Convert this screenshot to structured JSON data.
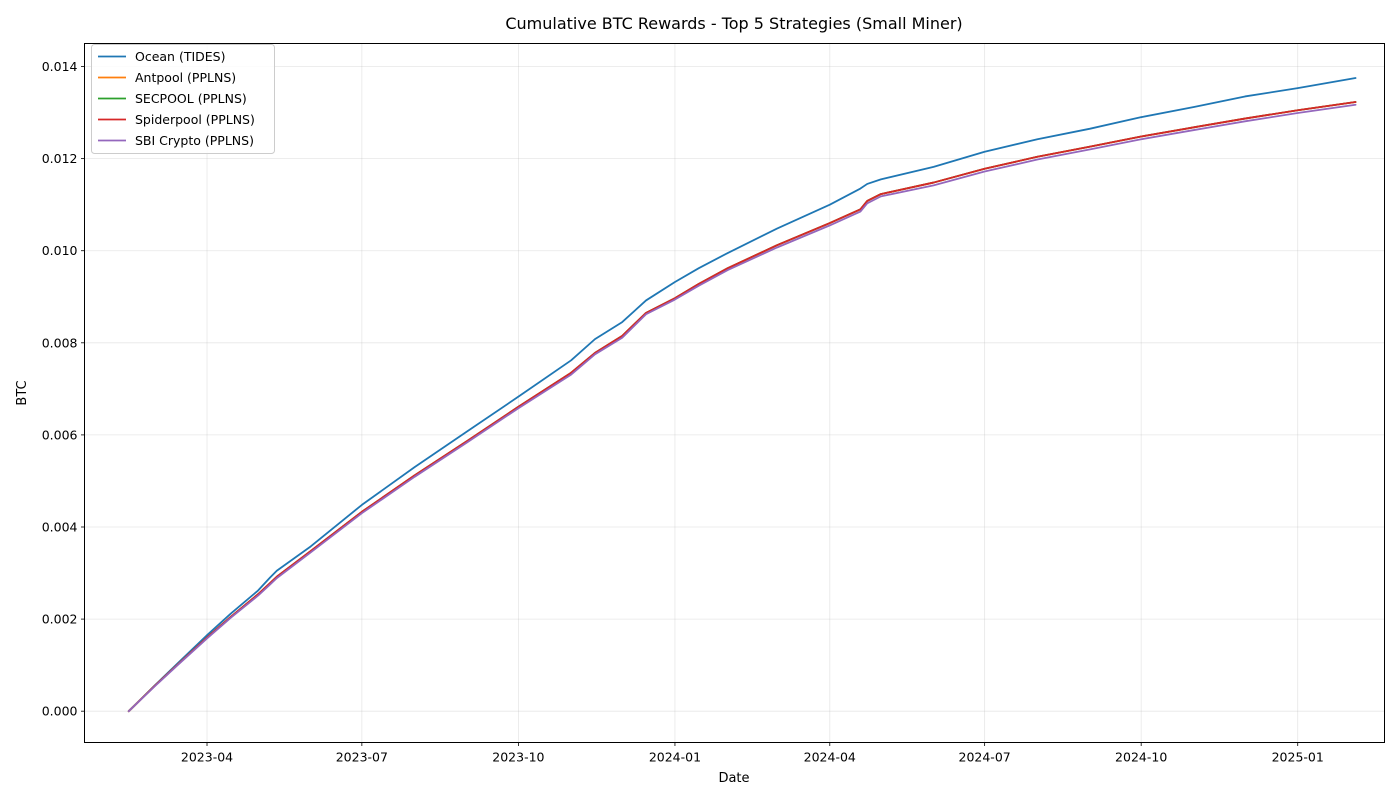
{
  "chart_data": {
    "type": "line",
    "title": "Cumulative BTC Rewards - Top 5 Strategies (Small Miner)",
    "xlabel": "Date",
    "ylabel": "BTC",
    "grid": true,
    "legend_position": "top-left",
    "x_range": [
      "2023-01-19",
      "2025-02-21"
    ],
    "y_range": [
      -0.00068,
      0.0145
    ],
    "x_ticks": [
      "2023-04",
      "2023-07",
      "2023-10",
      "2024-01",
      "2024-04",
      "2024-07",
      "2024-10",
      "2025-01"
    ],
    "y_ticks": [
      "0.000",
      "0.002",
      "0.004",
      "0.006",
      "0.008",
      "0.010",
      "0.012",
      "0.014"
    ],
    "x": [
      "2023-02-14",
      "2023-03-01",
      "2023-03-15",
      "2023-04-01",
      "2023-04-15",
      "2023-05-01",
      "2023-05-08",
      "2023-05-12",
      "2023-06-01",
      "2023-07-01",
      "2023-08-01",
      "2023-09-01",
      "2023-10-01",
      "2023-11-01",
      "2023-11-15",
      "2023-12-01",
      "2023-12-15",
      "2024-01-01",
      "2024-01-15",
      "2024-02-01",
      "2024-03-01",
      "2024-04-01",
      "2024-04-19",
      "2024-04-23",
      "2024-05-01",
      "2024-06-01",
      "2024-07-01",
      "2024-08-01",
      "2024-09-01",
      "2024-10-01",
      "2024-11-01",
      "2024-12-01",
      "2025-01-01",
      "2025-02-04"
    ],
    "series": [
      {
        "name": "Ocean (TIDES)",
        "color": "#1f77b4",
        "values": [
          0.0,
          0.00055,
          0.00105,
          0.00165,
          0.00212,
          0.00262,
          0.0029,
          0.00305,
          0.00358,
          0.00448,
          0.0053,
          0.00608,
          0.00683,
          0.00762,
          0.00808,
          0.00845,
          0.00892,
          0.00932,
          0.00962,
          0.00995,
          0.01048,
          0.011,
          0.01135,
          0.01145,
          0.01155,
          0.01182,
          0.01215,
          0.01242,
          0.01265,
          0.0129,
          0.01312,
          0.01335,
          0.01353,
          0.01375
        ]
      },
      {
        "name": "Antpool (PPLNS)",
        "color": "#ff7f0e",
        "values": [
          0.0,
          0.00054,
          0.00102,
          0.0016,
          0.00205,
          0.00254,
          0.00278,
          0.00292,
          0.00348,
          0.00433,
          0.00512,
          0.00587,
          0.00661,
          0.00735,
          0.00778,
          0.00815,
          0.00865,
          0.00897,
          0.00928,
          0.00962,
          0.01012,
          0.0106,
          0.0109,
          0.01108,
          0.01123,
          0.01148,
          0.01178,
          0.01204,
          0.01226,
          0.01248,
          0.01268,
          0.01287,
          0.01305,
          0.01323
        ]
      },
      {
        "name": "SECPOOL (PPLNS)",
        "color": "#2ca02c",
        "values": [
          0.0,
          0.00054,
          0.00102,
          0.0016,
          0.00205,
          0.00254,
          0.00278,
          0.00292,
          0.00348,
          0.00433,
          0.00512,
          0.00587,
          0.00661,
          0.00735,
          0.00778,
          0.00815,
          0.00865,
          0.00897,
          0.00928,
          0.00962,
          0.01012,
          0.0106,
          0.0109,
          0.01108,
          0.01123,
          0.01148,
          0.01178,
          0.01204,
          0.01226,
          0.01248,
          0.01268,
          0.01287,
          0.01305,
          0.01323
        ]
      },
      {
        "name": "Spiderpool (PPLNS)",
        "color": "#d62728",
        "values": [
          0.0,
          0.00054,
          0.00102,
          0.0016,
          0.00205,
          0.00254,
          0.00278,
          0.00292,
          0.00348,
          0.00433,
          0.00512,
          0.00587,
          0.00661,
          0.00735,
          0.00778,
          0.00815,
          0.00865,
          0.00897,
          0.00928,
          0.00962,
          0.01012,
          0.0106,
          0.0109,
          0.01108,
          0.01123,
          0.01148,
          0.01178,
          0.01204,
          0.01226,
          0.01248,
          0.01268,
          0.01287,
          0.01305,
          0.01323
        ]
      },
      {
        "name": "SBI Crypto (PPLNS)",
        "color": "#9467bd",
        "values": [
          0.0,
          0.00053,
          0.00101,
          0.00158,
          0.00203,
          0.00251,
          0.00275,
          0.00289,
          0.00345,
          0.0043,
          0.00509,
          0.00584,
          0.00658,
          0.00731,
          0.00775,
          0.00811,
          0.00862,
          0.00894,
          0.00924,
          0.00958,
          0.01007,
          0.01055,
          0.01085,
          0.01103,
          0.01118,
          0.01142,
          0.01172,
          0.01198,
          0.0122,
          0.01242,
          0.01262,
          0.01281,
          0.01299,
          0.01317
        ]
      }
    ]
  }
}
